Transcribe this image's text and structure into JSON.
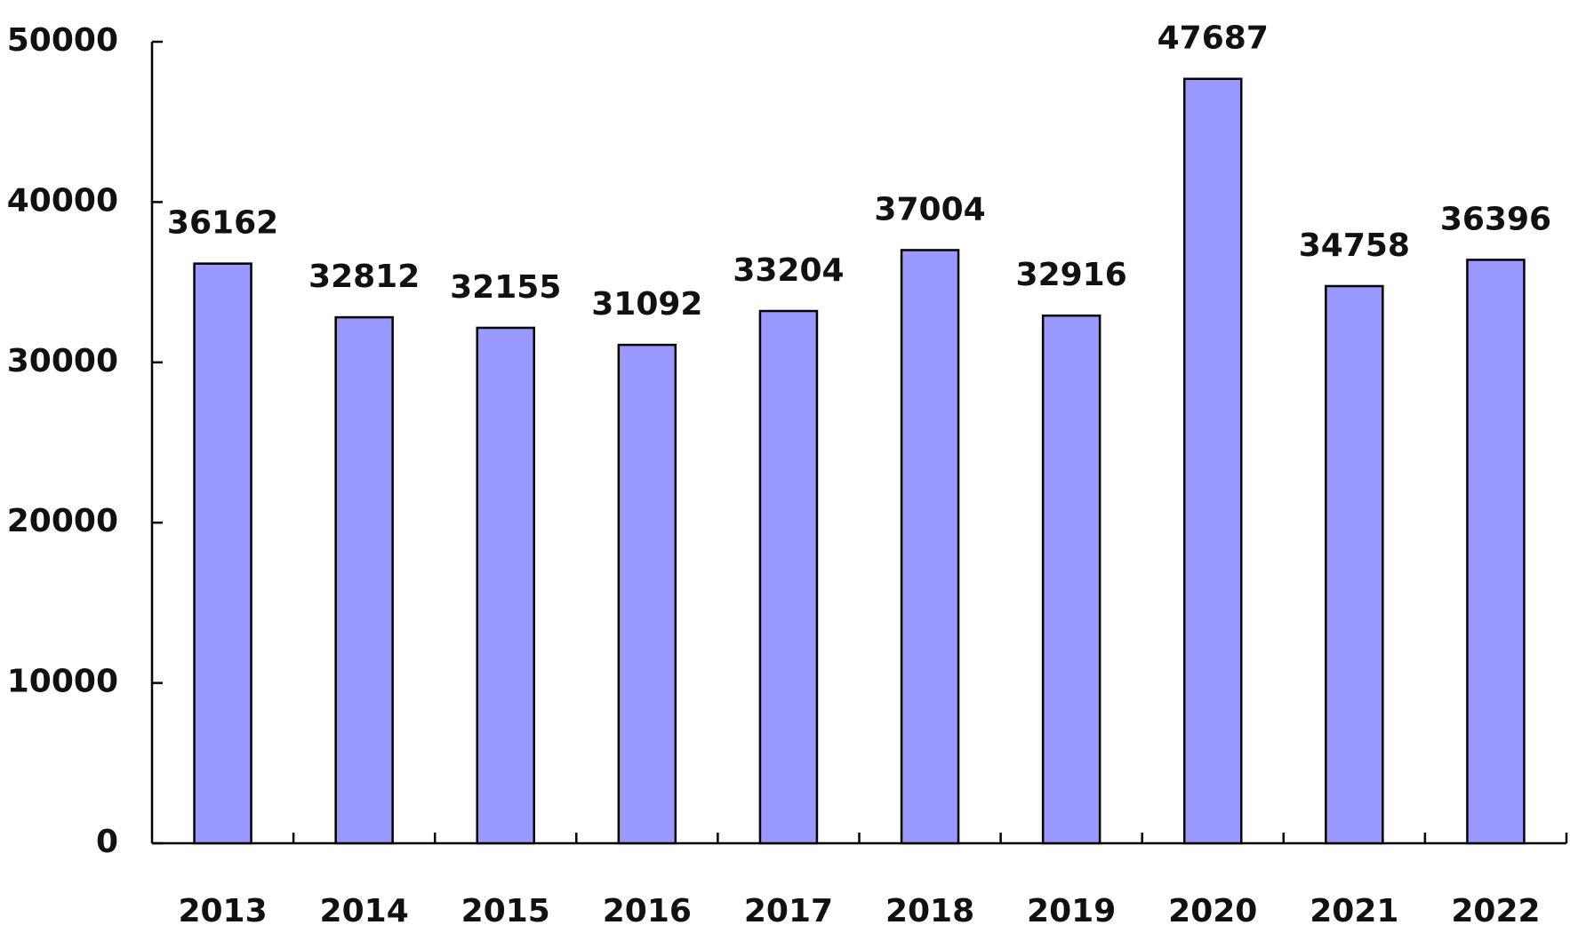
{
  "chart_data": {
    "type": "bar",
    "categories": [
      "2013",
      "2014",
      "2015",
      "2016",
      "2017",
      "2018",
      "2019",
      "2020",
      "2021",
      "2022"
    ],
    "values": [
      36162,
      32812,
      32155,
      31092,
      33204,
      37004,
      32916,
      47687,
      34758,
      36396
    ],
    "color": "#9999ff",
    "ylim": [
      0,
      50000
    ],
    "yticks": [
      0,
      10000,
      20000,
      30000,
      40000,
      50000
    ],
    "grid": false
  }
}
